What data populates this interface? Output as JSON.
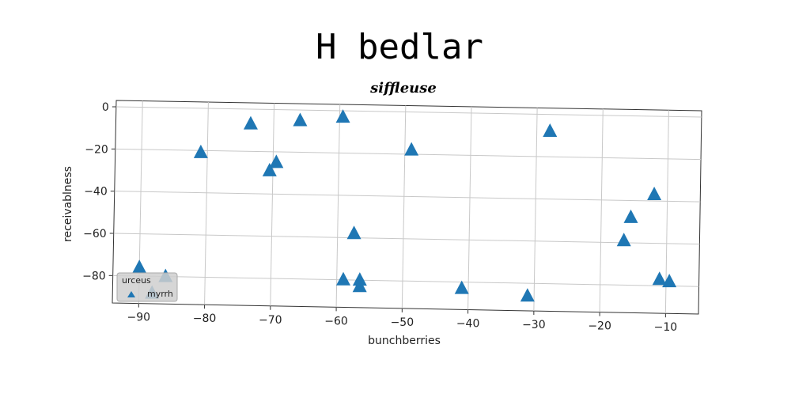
{
  "chart_data": {
    "type": "scatter",
    "title": "H bedlar",
    "subtitle": "siffleuse",
    "xlabel": "bunchberries",
    "ylabel": "receivablness",
    "xlim": [
      -94,
      -5
    ],
    "ylim": [
      -93,
      3
    ],
    "xticks": [
      -90,
      -80,
      -70,
      -60,
      -50,
      -40,
      -30,
      -20,
      -10
    ],
    "yticks": [
      0,
      -20,
      -40,
      -60,
      -80
    ],
    "grid": true,
    "marker": "triangle",
    "color": "#1f77b4",
    "legend": {
      "title": "urceus",
      "placement": "bottom-left"
    },
    "series": [
      {
        "name": "myrrh",
        "x": [
          -81,
          -73.5,
          -66,
          -59.5,
          -49,
          -28,
          -70.5,
          -69.5,
          -57.5,
          -59,
          -56.5,
          -56.5,
          -41,
          -31,
          -12,
          -15.5,
          -16.5,
          -11,
          -9.5,
          -90,
          -86,
          -88
        ],
        "y": [
          -21,
          -7,
          -5,
          -3,
          -18,
          -8,
          -29,
          -25,
          -58,
          -80,
          -80,
          -83,
          -83,
          -86,
          -37,
          -48,
          -59,
          -77,
          -78,
          -76,
          -80,
          -88
        ]
      }
    ]
  }
}
